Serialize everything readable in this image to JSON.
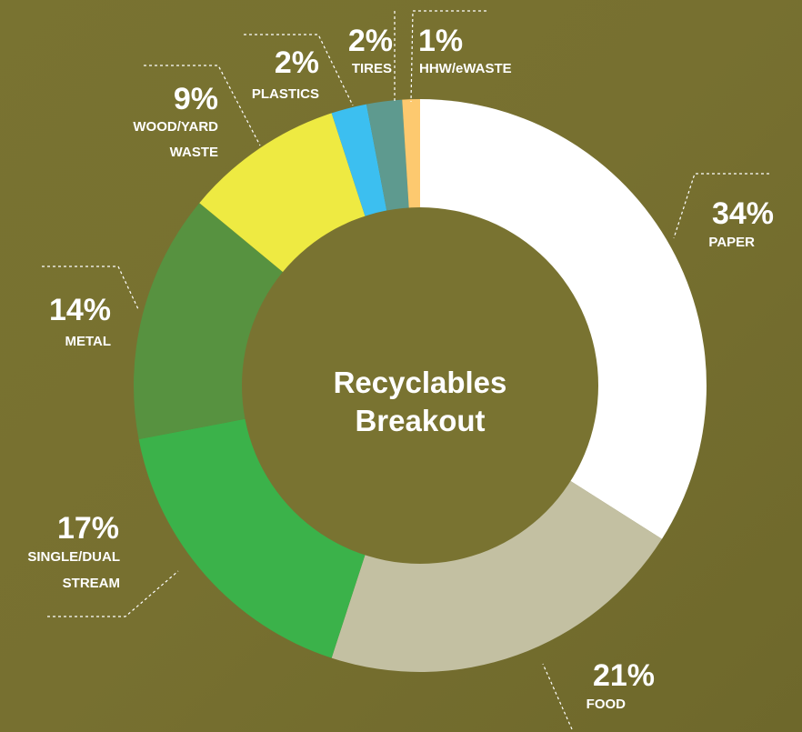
{
  "chart_data": {
    "type": "pie",
    "title_lines": [
      "Recyclables",
      "Breakout"
    ],
    "slices": [
      {
        "label_lines": [
          "PAPER"
        ],
        "percent_text": "34%",
        "value": 34,
        "color": "#ffffff"
      },
      {
        "label_lines": [
          "FOOD"
        ],
        "percent_text": "21%",
        "value": 21,
        "color": "#c3c0a2"
      },
      {
        "label_lines": [
          "SINGLE/DUAL",
          "STREAM"
        ],
        "percent_text": "17%",
        "value": 17,
        "color": "#3bb24a"
      },
      {
        "label_lines": [
          "METAL"
        ],
        "percent_text": "14%",
        "value": 14,
        "color": "#579240"
      },
      {
        "label_lines": [
          "WOOD/YARD",
          "WASTE"
        ],
        "percent_text": "9%",
        "value": 9,
        "color": "#eeea42"
      },
      {
        "label_lines": [
          "PLASTICS"
        ],
        "percent_text": "2%",
        "value": 2,
        "color": "#3cbff0"
      },
      {
        "label_lines": [
          "TIRES"
        ],
        "percent_text": "2%",
        "value": 2,
        "color": "#5e9a8f"
      },
      {
        "label_lines": [
          "HHW/eWASTE"
        ],
        "percent_text": "1%",
        "value": 1,
        "color": "#fdc96f"
      }
    ]
  }
}
